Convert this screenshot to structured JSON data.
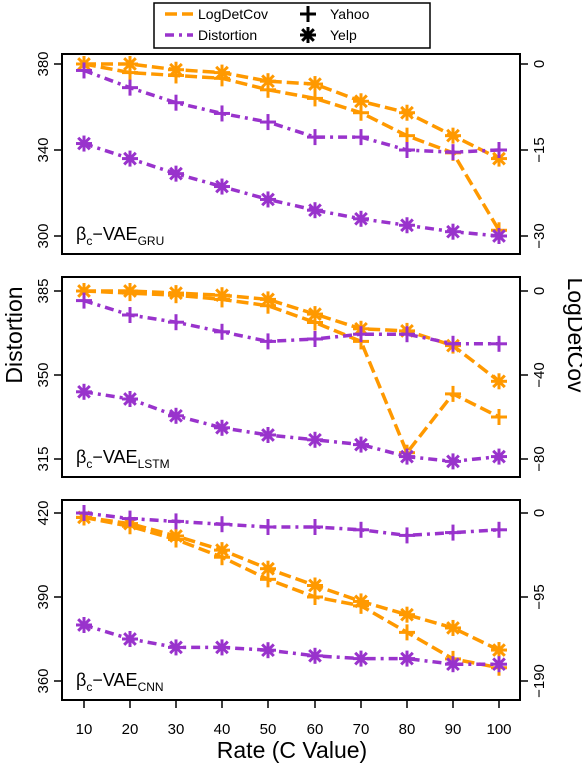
{
  "colors": {
    "logdetcov": "#FF9900",
    "distortion": "#9933CC",
    "axis": "#000000"
  },
  "legend": {
    "items": [
      {
        "label": "LogDetCov",
        "kind": "series-color",
        "series": "logdetcov"
      },
      {
        "label": "Yahoo",
        "kind": "marker",
        "marker": "plus"
      },
      {
        "label": "Distortion",
        "kind": "series-color",
        "series": "distortion"
      },
      {
        "label": "Yelp",
        "kind": "marker",
        "marker": "asterisk"
      }
    ]
  },
  "ylabel_left": "Distortion",
  "ylabel_right": "LogDetCov",
  "xlabel": "Rate (C Value)",
  "chart_data": [
    {
      "type": "line",
      "panel_label": {
        "main": "β",
        "sub1": "c",
        "mid": "−VAE",
        "sub2": "GRU"
      },
      "x": [
        10,
        20,
        30,
        40,
        50,
        60,
        70,
        80,
        90,
        100
      ],
      "xticks": [
        "10",
        "20",
        "30",
        "40",
        "50",
        "60",
        "70",
        "80",
        "90",
        "100"
      ],
      "left_axis": {
        "ylim": [
          300,
          380
        ],
        "ticks": [
          300,
          340,
          380
        ]
      },
      "right_axis": {
        "ylim": [
          -30,
          0
        ],
        "ticks": [
          0,
          -15,
          -30
        ]
      },
      "series": [
        {
          "metric": "logdetcov",
          "dataset": "Yahoo",
          "axis": "right",
          "values": [
            0,
            -1.5,
            -2,
            -2.5,
            -4.5,
            -6,
            -8.5,
            -12.5,
            -15.5,
            -29
          ]
        },
        {
          "metric": "logdetcov",
          "dataset": "Yelp",
          "axis": "right",
          "values": [
            0,
            0,
            -1,
            -1.5,
            -3,
            -3.5,
            -6.5,
            -8.5,
            -12.5,
            -16.5
          ]
        },
        {
          "metric": "distortion",
          "dataset": "Yahoo",
          "axis": "left",
          "values": [
            377,
            369,
            362,
            357,
            353,
            346,
            346,
            340,
            339,
            340
          ]
        },
        {
          "metric": "distortion",
          "dataset": "Yelp",
          "axis": "left",
          "values": [
            343,
            336,
            329,
            323,
            317,
            312,
            308,
            305,
            302,
            300
          ]
        }
      ]
    },
    {
      "type": "line",
      "panel_label": {
        "main": "β",
        "sub1": "c",
        "mid": "−VAE",
        "sub2": "LSTM"
      },
      "x": [
        10,
        20,
        30,
        40,
        50,
        60,
        70,
        80,
        90,
        100
      ],
      "xticks": [
        "10",
        "20",
        "30",
        "40",
        "50",
        "60",
        "70",
        "80",
        "90",
        "100"
      ],
      "left_axis": {
        "ylim": [
          315,
          385
        ],
        "ticks": [
          315,
          350,
          385
        ]
      },
      "right_axis": {
        "ylim": [
          -80,
          0
        ],
        "ticks": [
          0,
          -40,
          -80
        ]
      },
      "series": [
        {
          "metric": "logdetcov",
          "dataset": "Yahoo",
          "axis": "right",
          "values": [
            0,
            -1,
            -2,
            -4,
            -7,
            -15,
            -24,
            -77,
            -49,
            -60
          ]
        },
        {
          "metric": "logdetcov",
          "dataset": "Yelp",
          "axis": "right",
          "values": [
            0,
            0,
            -1,
            -2,
            -4,
            -11,
            -18,
            -19,
            -26,
            -43
          ]
        },
        {
          "metric": "distortion",
          "dataset": "Yahoo",
          "axis": "left",
          "values": [
            381,
            375,
            372,
            368,
            364,
            365,
            367,
            367,
            363,
            363
          ]
        },
        {
          "metric": "distortion",
          "dataset": "Yelp",
          "axis": "left",
          "values": [
            343,
            340,
            333,
            328,
            325,
            323,
            321,
            316,
            314,
            316
          ]
        }
      ]
    },
    {
      "type": "line",
      "panel_label": {
        "main": "β",
        "sub1": "c",
        "mid": "−VAE",
        "sub2": "CNN"
      },
      "x": [
        10,
        20,
        30,
        40,
        50,
        60,
        70,
        80,
        90,
        100
      ],
      "xticks": [
        "10",
        "20",
        "30",
        "40",
        "50",
        "60",
        "70",
        "80",
        "90",
        "100"
      ],
      "left_axis": {
        "ylim": [
          360,
          420
        ],
        "ticks": [
          360,
          390,
          420
        ]
      },
      "right_axis": {
        "ylim": [
          -190,
          0
        ],
        "ticks": [
          0,
          -95,
          -190
        ]
      },
      "series": [
        {
          "metric": "logdetcov",
          "dataset": "Yahoo",
          "axis": "right",
          "values": [
            -5,
            -15,
            -30,
            -50,
            -75,
            -95,
            -105,
            -135,
            -165,
            -175
          ]
        },
        {
          "metric": "logdetcov",
          "dataset": "Yelp",
          "axis": "right",
          "values": [
            -5,
            -12,
            -26,
            -42,
            -63,
            -82,
            -100,
            -115,
            -130,
            -155
          ]
        },
        {
          "metric": "distortion",
          "dataset": "Yahoo",
          "axis": "left",
          "values": [
            420,
            418,
            417,
            416,
            415,
            415,
            414,
            412,
            413,
            414
          ]
        },
        {
          "metric": "distortion",
          "dataset": "Yelp",
          "axis": "left",
          "values": [
            380,
            375,
            372,
            372,
            371,
            369,
            368,
            368,
            366,
            366
          ]
        }
      ]
    }
  ]
}
